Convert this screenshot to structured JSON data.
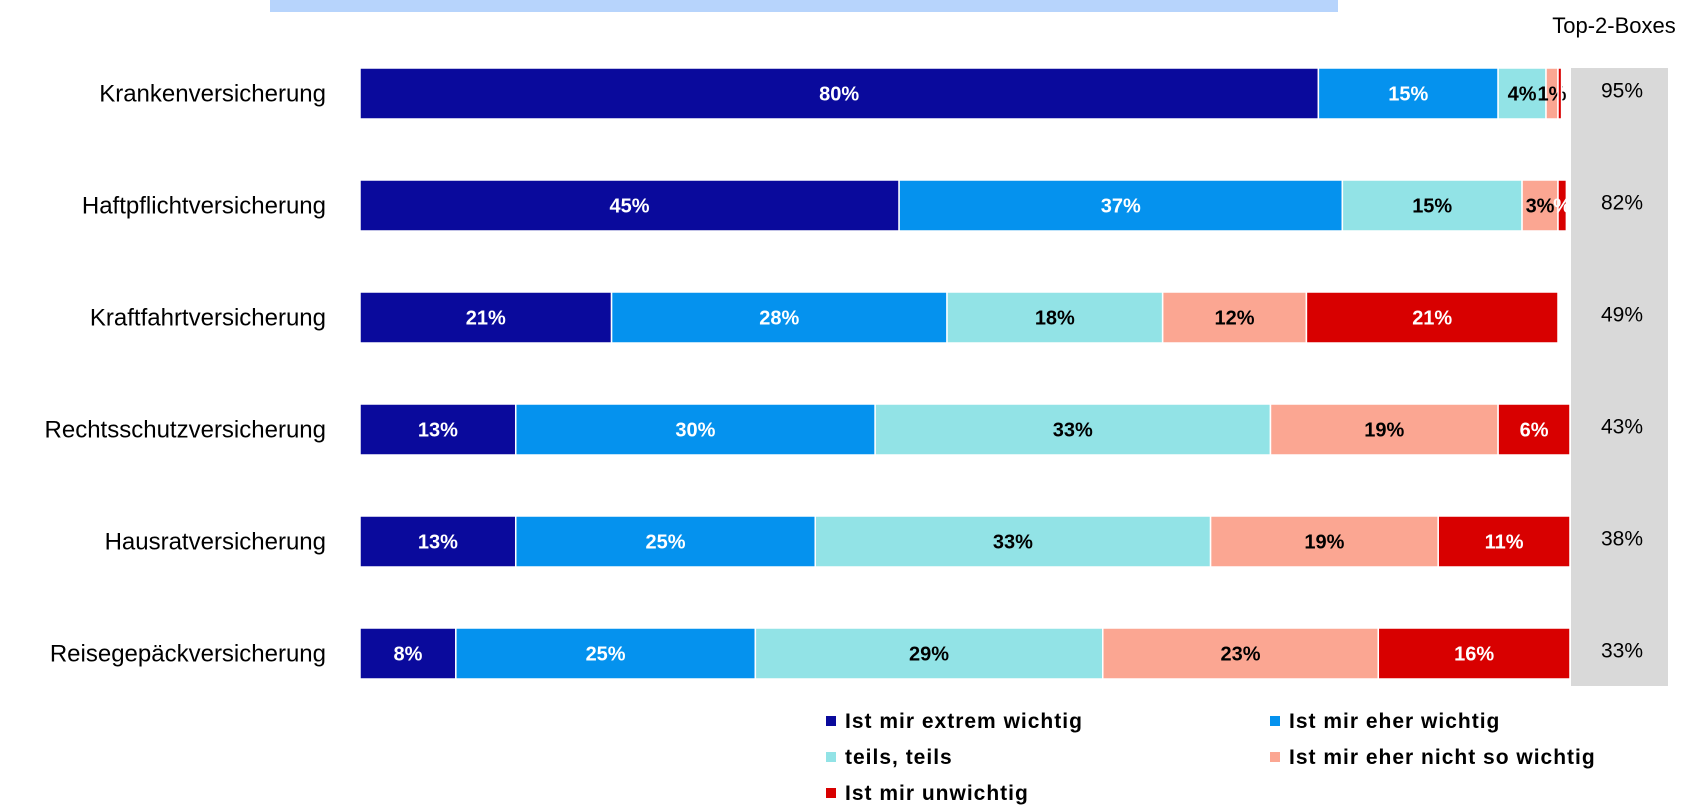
{
  "chart_data": {
    "type": "bar",
    "orientation": "horizontal",
    "stacked": true,
    "title": "",
    "xlim": [
      0,
      100
    ],
    "categories": [
      "Krankenversicherung",
      "Haftpflichtversicherung",
      "Kraftfahrtversicherung",
      "Rechtsschutzversicherung",
      "Hausratversicherung",
      "Reisegepäckversicherung"
    ],
    "series": [
      {
        "name": "Ist mir extrem wichtig",
        "color": "#0a0a9c",
        "label_color": "#ffffff",
        "values": [
          80,
          45,
          21,
          13,
          13,
          8
        ]
      },
      {
        "name": "Ist mir eher wichtig",
        "color": "#0592ee",
        "label_color": "#ffffff",
        "values": [
          15,
          37,
          28,
          30,
          25,
          25
        ]
      },
      {
        "name": "teils, teils",
        "color": "#92e3e6",
        "label_color": "#000000",
        "values": [
          4,
          15,
          18,
          33,
          33,
          29
        ]
      },
      {
        "name": "Ist mir eher nicht so wichtig",
        "color": "#fba692",
        "label_color": "#000000",
        "values": [
          1,
          3,
          12,
          19,
          19,
          23
        ]
      },
      {
        "name": "Ist mir unwichtig",
        "color": "#d80000",
        "label_color": "#ffffff",
        "values": [
          0.3,
          0.7,
          21,
          6,
          11,
          16
        ]
      }
    ],
    "data_labels": [
      [
        "80%",
        "15%",
        "4%",
        "1%",
        ""
      ],
      [
        "45%",
        "37%",
        "15%",
        "3%",
        "%"
      ],
      [
        "21%",
        "28%",
        "18%",
        "12%",
        "21%"
      ],
      [
        "13%",
        "30%",
        "33%",
        "19%",
        "6%"
      ],
      [
        "13%",
        "25%",
        "33%",
        "19%",
        "11%"
      ],
      [
        "8%",
        "25%",
        "29%",
        "23%",
        "16%"
      ]
    ],
    "top2": {
      "header": "Top-2-Boxes",
      "values": [
        "95%",
        "82%",
        "49%",
        "43%",
        "38%",
        "33%"
      ],
      "band_color": "#d9d9d9"
    },
    "legend_position": "bottom",
    "grid": false
  }
}
